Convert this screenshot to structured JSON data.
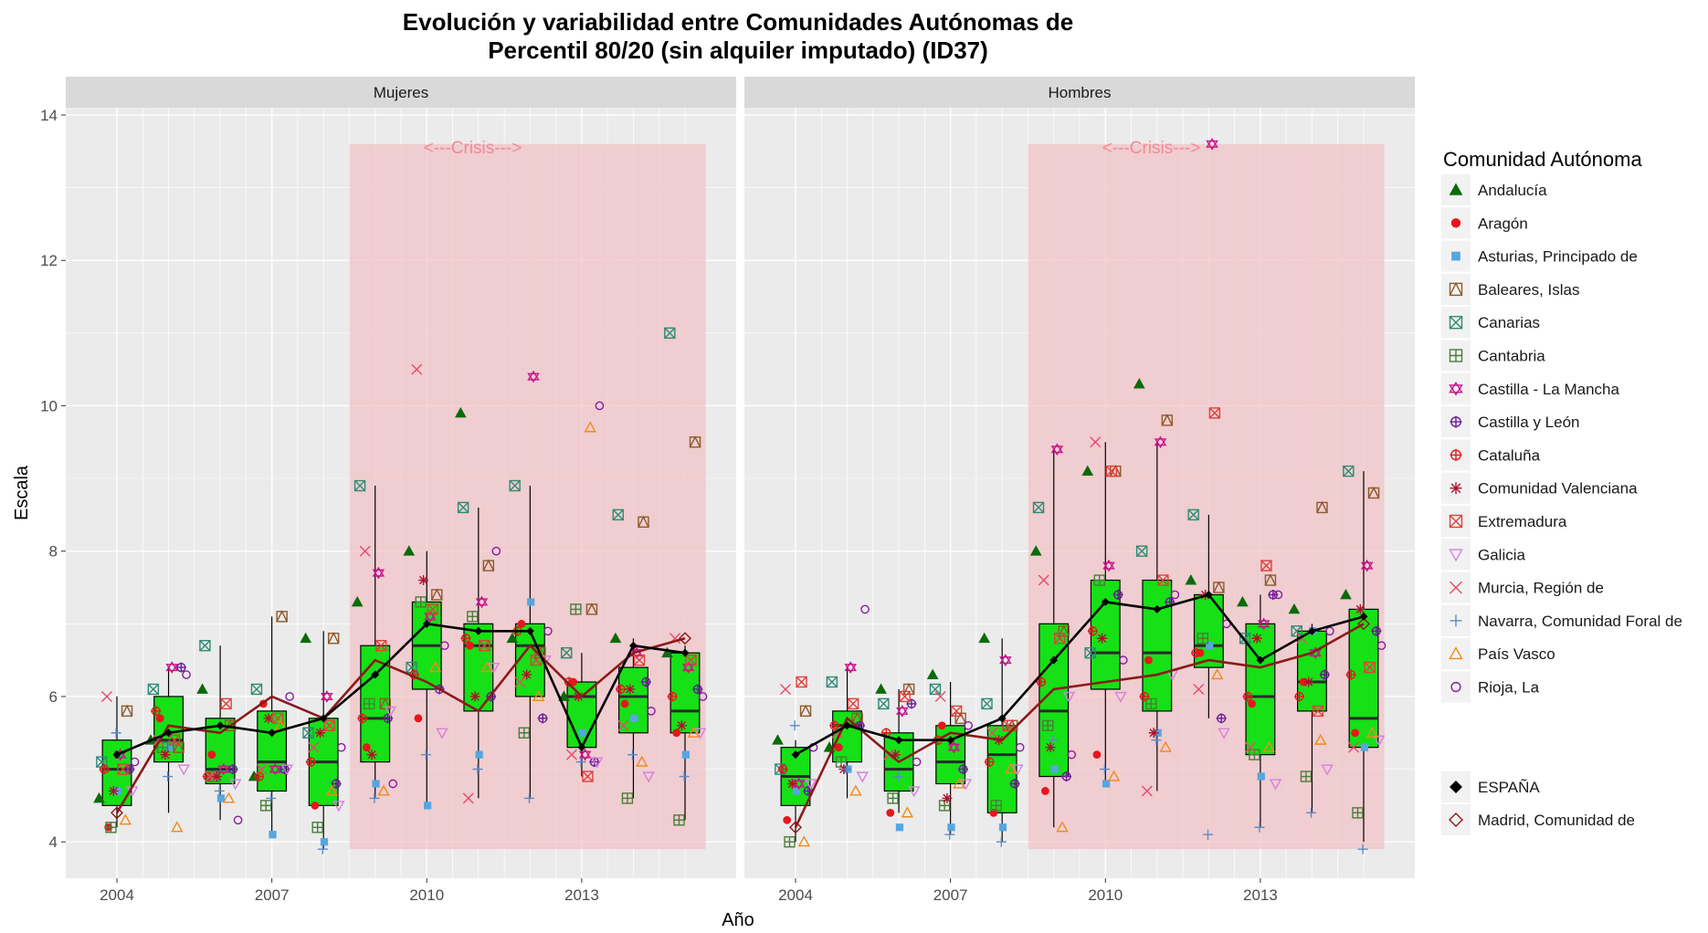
{
  "chart_data": {
    "type": "boxplot",
    "title_line1": "Evolución y variabilidad entre Comunidades Autónomas de",
    "title_line2": "Percentil 80/20 (sin alquiler imputado) (ID37)",
    "xlabel": "Año",
    "ylabel": "Escala",
    "ylim": [
      3.5,
      14.1
    ],
    "y_ticks": [
      4,
      6,
      8,
      10,
      12,
      14
    ],
    "years": [
      2004,
      2005,
      2006,
      2007,
      2008,
      2009,
      2010,
      2011,
      2012,
      2013,
      2014,
      2015
    ],
    "x_ticks": [
      2004,
      2007,
      2010,
      2013
    ],
    "crisis": {
      "label": "<---Crisis--->",
      "from_year": 2008.5,
      "to_year": 2015.4,
      "ymin": 3.9,
      "ymax": 13.6
    },
    "colors": {
      "box_fill": "#16e016",
      "crisis_band": "#f2c0c4",
      "spain": "#000000",
      "madrid": "#8b1a1a",
      "panel_bg": "#ebebeb",
      "strip_bg": "#d9d9d9"
    },
    "legend": {
      "title": "Comunidad Autónoma",
      "items": [
        {
          "label": "Andalucía",
          "shape": "triangle",
          "color": "#0b6b0b"
        },
        {
          "label": "Aragón",
          "shape": "circle",
          "color": "#e8161c"
        },
        {
          "label": "Asturias, Principado de",
          "shape": "square",
          "color": "#56a6e0"
        },
        {
          "label": "Baleares, Islas",
          "shape": "boxtri",
          "color": "#8b5a2b"
        },
        {
          "label": "Canarias",
          "shape": "boxx",
          "color": "#2e8b74"
        },
        {
          "label": "Cantabria",
          "shape": "boxplus",
          "color": "#4a7d3a"
        },
        {
          "label": "Castilla - La Mancha",
          "shape": "star",
          "color": "#c8168c"
        },
        {
          "label": "Castilla y León",
          "shape": "circleplus",
          "color": "#6a1a9a"
        },
        {
          "label": "Cataluña",
          "shape": "circlecross",
          "color": "#e8161c"
        },
        {
          "label": "Comunidad Valenciana",
          "shape": "asterisk",
          "color": "#b0102a"
        },
        {
          "label": "Extremadura",
          "shape": "boxx",
          "color": "#e0403a"
        },
        {
          "label": "Galicia",
          "shape": "downtri",
          "color": "#d87ee0"
        },
        {
          "label": "Murcia, Región de",
          "shape": "x",
          "color": "#e84a6a"
        },
        {
          "label": "Navarra, Comunidad Foral de",
          "shape": "plus",
          "color": "#5a8ac8"
        },
        {
          "label": "País Vasco",
          "shape": "uptri",
          "color": "#f08a1a"
        },
        {
          "label": "Rioja, La",
          "shape": "circle_open",
          "color": "#8a1aa0"
        }
      ],
      "extra_items": [
        {
          "label": "ESPAÑA",
          "shape": "diamond_filled",
          "color": "#000000"
        },
        {
          "label": "Madrid, Comunidad de",
          "shape": "diamond_open",
          "color": "#8b1a1a"
        }
      ]
    },
    "panels": [
      {
        "strip": "Mujeres",
        "boxes": [
          {
            "year": 2004,
            "q1": 4.5,
            "median": 5.0,
            "q3": 5.4,
            "lo": 4.2,
            "hi": 6.0
          },
          {
            "year": 2005,
            "q1": 5.1,
            "median": 5.4,
            "q3": 6.0,
            "lo": 4.4,
            "hi": 6.4
          },
          {
            "year": 2006,
            "q1": 4.8,
            "median": 5.0,
            "q3": 5.7,
            "lo": 4.3,
            "hi": 6.7
          },
          {
            "year": 2007,
            "q1": 4.7,
            "median": 5.1,
            "q3": 5.8,
            "lo": 4.1,
            "hi": 7.1
          },
          {
            "year": 2008,
            "q1": 4.5,
            "median": 5.1,
            "q3": 5.7,
            "lo": 3.9,
            "hi": 6.9
          },
          {
            "year": 2009,
            "q1": 5.1,
            "median": 5.7,
            "q3": 6.7,
            "lo": 4.6,
            "hi": 8.9
          },
          {
            "year": 2010,
            "q1": 6.1,
            "median": 6.7,
            "q3": 7.3,
            "lo": 4.5,
            "hi": 8.0
          },
          {
            "year": 2011,
            "q1": 5.8,
            "median": 6.7,
            "q3": 7.0,
            "lo": 4.6,
            "hi": 8.6
          },
          {
            "year": 2012,
            "q1": 6.0,
            "median": 6.7,
            "q3": 7.0,
            "lo": 4.6,
            "hi": 8.9
          },
          {
            "year": 2013,
            "q1": 5.3,
            "median": 6.0,
            "q3": 6.2,
            "lo": 4.9,
            "hi": 6.6
          },
          {
            "year": 2014,
            "q1": 5.5,
            "median": 6.0,
            "q3": 6.4,
            "lo": 4.6,
            "hi": 6.8
          },
          {
            "year": 2015,
            "q1": 5.5,
            "median": 5.8,
            "q3": 6.6,
            "lo": 4.3,
            "hi": 6.7
          }
        ],
        "spain": [
          5.2,
          5.5,
          5.6,
          5.5,
          5.7,
          6.3,
          7.0,
          6.9,
          6.9,
          5.3,
          6.7,
          6.6
        ],
        "madrid": [
          4.4,
          5.6,
          5.5,
          6.0,
          5.7,
          6.5,
          6.2,
          5.8,
          6.7,
          6.0,
          6.6,
          6.8
        ],
        "points": [
          {
            "c": 0,
            "v": [
              4.6,
              5.4,
              6.1,
              4.9,
              6.8,
              7.3,
              8.0,
              9.9,
              6.8,
              6.0,
              6.8,
              6.6
            ]
          },
          {
            "c": 1,
            "v": [
              4.2,
              5.7,
              5.2,
              5.9,
              4.5,
              5.3,
              5.7,
              6.7,
              7.0,
              6.2,
              5.9,
              5.5
            ]
          },
          {
            "c": 2,
            "v": [
              4.7,
              5.3,
              4.6,
              4.1,
              4.0,
              4.8,
              4.5,
              5.2,
              7.3,
              5.5,
              5.7,
              5.2
            ]
          },
          {
            "c": 3,
            "v": [
              5.8,
              5.3,
              5.6,
              7.1,
              6.8,
              5.9,
              7.4,
              7.8,
              6.6,
              7.2,
              8.4,
              9.5
            ]
          },
          {
            "c": 4,
            "v": [
              5.1,
              6.1,
              6.7,
              6.1,
              5.5,
              8.9,
              6.4,
              8.6,
              8.9,
              6.6,
              8.5,
              11.0
            ]
          },
          {
            "c": 5,
            "v": [
              4.2,
              5.3,
              4.9,
              4.5,
              4.2,
              5.9,
              7.3,
              7.1,
              5.5,
              7.2,
              4.6,
              4.3
            ]
          },
          {
            "c": 6,
            "v": [
              5.2,
              6.4,
              5.0,
              5.0,
              6.0,
              7.7,
              7.1,
              7.3,
              10.4,
              5.2,
              6.6,
              6.4
            ]
          },
          {
            "c": 7,
            "v": [
              5.0,
              6.4,
              5.0,
              5.0,
              4.8,
              5.7,
              6.1,
              6.0,
              5.7,
              5.1,
              6.2,
              6.1
            ]
          },
          {
            "c": 8,
            "v": [
              5.0,
              5.8,
              4.9,
              4.9,
              5.1,
              5.7,
              6.3,
              6.8,
              6.9,
              6.2,
              6.1,
              6.0
            ]
          },
          {
            "c": 9,
            "v": [
              4.7,
              5.2,
              4.9,
              5.7,
              5.5,
              5.2,
              7.6,
              6.0,
              6.3,
              6.0,
              6.1,
              5.6
            ]
          },
          {
            "c": 10,
            "v": [
              5.0,
              5.4,
              5.9,
              5.7,
              5.6,
              6.7,
              7.2,
              6.7,
              6.5,
              4.9,
              6.5,
              6.5
            ]
          },
          {
            "c": 11,
            "v": [
              4.7,
              5.0,
              4.8,
              5.0,
              4.5,
              5.8,
              5.5,
              6.4,
              6.5,
              5.1,
              4.9,
              5.5
            ]
          },
          {
            "c": 12,
            "v": [
              6.0,
              5.4,
              4.9,
              5.0,
              5.3,
              8.0,
              10.5,
              4.6,
              6.2,
              5.2,
              5.6,
              6.8
            ]
          },
          {
            "c": 13,
            "v": [
              5.5,
              4.9,
              4.7,
              4.6,
              3.9,
              4.6,
              5.2,
              5.0,
              4.6,
              5.1,
              5.2,
              4.9
            ]
          },
          {
            "c": 14,
            "v": [
              4.3,
              4.2,
              4.6,
              5.6,
              4.7,
              4.7,
              6.4,
              6.4,
              6.0,
              9.7,
              5.1,
              5.5
            ]
          },
          {
            "c": 15,
            "v": [
              5.1,
              6.3,
              4.3,
              6.0,
              5.3,
              4.8,
              6.7,
              8.0,
              6.9,
              10.0,
              5.8,
              6.0
            ]
          }
        ]
      },
      {
        "strip": "Hombres",
        "boxes": [
          {
            "year": 2004,
            "q1": 4.5,
            "median": 4.9,
            "q3": 5.3,
            "lo": 4.0,
            "hi": 5.4
          },
          {
            "year": 2005,
            "q1": 5.1,
            "median": 5.6,
            "q3": 5.8,
            "lo": 4.6,
            "hi": 6.4
          },
          {
            "year": 2006,
            "q1": 4.7,
            "median": 5.0,
            "q3": 5.5,
            "lo": 4.4,
            "hi": 6.1
          },
          {
            "year": 2007,
            "q1": 4.8,
            "median": 5.1,
            "q3": 5.6,
            "lo": 4.1,
            "hi": 6.2
          },
          {
            "year": 2008,
            "q1": 4.4,
            "median": 5.2,
            "q3": 5.6,
            "lo": 4.0,
            "hi": 6.8
          },
          {
            "year": 2009,
            "q1": 4.9,
            "median": 5.8,
            "q3": 7.0,
            "lo": 4.2,
            "hi": 9.4
          },
          {
            "year": 2010,
            "q1": 6.1,
            "median": 6.6,
            "q3": 7.6,
            "lo": 4.8,
            "hi": 9.5
          },
          {
            "year": 2011,
            "q1": 5.8,
            "median": 6.6,
            "q3": 7.6,
            "lo": 4.7,
            "hi": 9.5
          },
          {
            "year": 2012,
            "q1": 6.4,
            "median": 6.7,
            "q3": 7.4,
            "lo": 5.7,
            "hi": 8.5
          },
          {
            "year": 2013,
            "q1": 5.2,
            "median": 6.0,
            "q3": 7.0,
            "lo": 4.2,
            "hi": 7.4
          },
          {
            "year": 2014,
            "q1": 5.8,
            "median": 6.2,
            "q3": 6.9,
            "lo": 4.4,
            "hi": 7.0
          },
          {
            "year": 2015,
            "q1": 5.3,
            "median": 5.7,
            "q3": 7.2,
            "lo": 4.0,
            "hi": 9.1
          }
        ],
        "spain": [
          5.2,
          5.6,
          5.4,
          5.4,
          5.7,
          6.5,
          7.3,
          7.2,
          7.4,
          6.5,
          6.9,
          7.1
        ],
        "madrid": [
          4.2,
          5.7,
          5.1,
          5.5,
          5.4,
          6.1,
          6.2,
          6.3,
          6.5,
          6.4,
          6.6,
          7.0
        ],
        "points": [
          {
            "c": 0,
            "v": [
              5.4,
              5.3,
              6.1,
              6.3,
              6.8,
              8.0,
              9.1,
              10.3,
              7.6,
              7.3,
              7.2,
              7.4
            ]
          },
          {
            "c": 1,
            "v": [
              4.3,
              5.3,
              4.4,
              5.6,
              4.4,
              4.7,
              5.2,
              6.5,
              6.6,
              5.9,
              6.2,
              5.5
            ]
          },
          {
            "c": 2,
            "v": [
              4.7,
              5.0,
              4.2,
              4.2,
              4.2,
              5.0,
              4.8,
              5.5,
              6.7,
              4.9,
              6.9,
              5.3
            ]
          },
          {
            "c": 3,
            "v": [
              5.8,
              5.7,
              6.1,
              5.7,
              5.6,
              6.9,
              9.1,
              9.8,
              7.5,
              7.6,
              8.6,
              8.8
            ]
          },
          {
            "c": 4,
            "v": [
              5.0,
              6.2,
              5.9,
              6.1,
              5.9,
              8.6,
              6.6,
              8.0,
              8.5,
              6.8,
              6.9,
              9.1
            ]
          },
          {
            "c": 5,
            "v": [
              4.0,
              5.1,
              4.6,
              4.5,
              4.5,
              5.6,
              7.6,
              5.9,
              6.8,
              5.2,
              4.9,
              4.4
            ]
          },
          {
            "c": 6,
            "v": [
              4.8,
              6.4,
              5.8,
              5.3,
              6.5,
              9.4,
              7.8,
              9.5,
              13.6,
              7.0,
              6.6,
              7.8
            ]
          },
          {
            "c": 7,
            "v": [
              4.7,
              5.6,
              5.9,
              5.0,
              4.8,
              4.9,
              7.4,
              7.3,
              5.7,
              7.4,
              6.3,
              6.9
            ]
          },
          {
            "c": 8,
            "v": [
              5.0,
              5.6,
              5.5,
              5.4,
              5.1,
              6.2,
              6.9,
              6.0,
              6.6,
              6.0,
              6.0,
              6.3
            ]
          },
          {
            "c": 9,
            "v": [
              4.8,
              5.0,
              5.2,
              4.6,
              5.4,
              5.3,
              6.8,
              5.5,
              7.4,
              6.8,
              6.2,
              7.2
            ]
          },
          {
            "c": 10,
            "v": [
              6.2,
              5.9,
              6.0,
              5.8,
              5.6,
              6.8,
              9.1,
              7.6,
              9.9,
              7.8,
              5.8,
              6.4
            ]
          },
          {
            "c": 11,
            "v": [
              4.8,
              4.9,
              4.7,
              4.8,
              5.0,
              6.0,
              6.0,
              6.3,
              5.5,
              4.8,
              5.0,
              5.4
            ]
          },
          {
            "c": 12,
            "v": [
              6.1,
              5.5,
              5.2,
              6.0,
              5.5,
              7.6,
              9.5,
              4.7,
              6.1,
              5.3,
              6.8,
              5.3
            ]
          },
          {
            "c": 13,
            "v": [
              5.6,
              5.0,
              4.9,
              4.1,
              4.0,
              5.4,
              5.0,
              5.4,
              4.1,
              4.2,
              4.4,
              3.9
            ]
          },
          {
            "c": 14,
            "v": [
              4.0,
              4.7,
              4.4,
              4.8,
              5.0,
              4.2,
              4.9,
              5.3,
              6.3,
              5.3,
              5.4,
              5.5
            ]
          },
          {
            "c": 15,
            "v": [
              5.3,
              7.2,
              5.1,
              5.6,
              5.3,
              5.2,
              6.5,
              7.4,
              7.0,
              7.4,
              6.9,
              6.7
            ]
          }
        ]
      }
    ]
  }
}
